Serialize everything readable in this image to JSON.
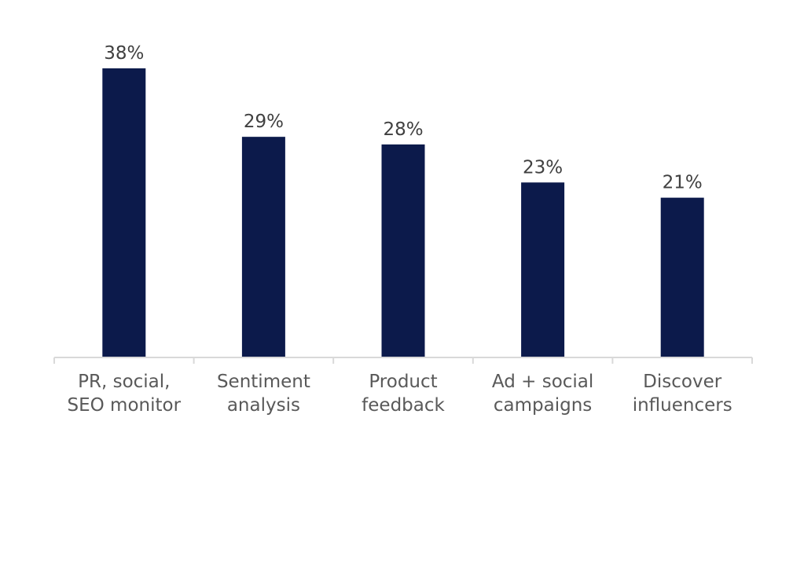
{
  "chart_data": {
    "type": "bar",
    "categories": [
      [
        "PR, social,",
        "SEO monitor"
      ],
      [
        "Sentiment",
        "analysis"
      ],
      [
        "Product",
        "feedback"
      ],
      [
        "Ad + social",
        "campaigns"
      ],
      [
        "Discover",
        "influencers"
      ]
    ],
    "values": [
      38,
      29,
      28,
      23,
      21
    ],
    "data_labels": [
      "38%",
      "29%",
      "28%",
      "23%",
      "21%"
    ],
    "title": "",
    "xlabel": "",
    "ylabel": "",
    "ylim": [
      0,
      38
    ],
    "grid": false,
    "legend": "none",
    "bar_color": "#0c1a4b",
    "axis_color": "#d9d9d9"
  }
}
